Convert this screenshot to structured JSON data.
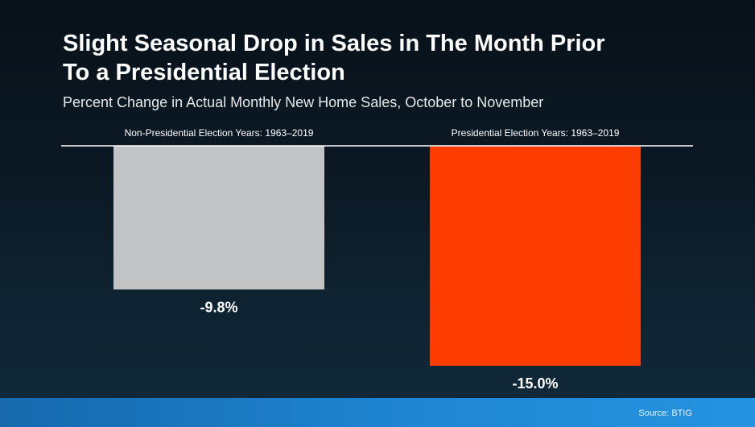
{
  "title_line1": "Slight Seasonal Drop in Sales in The Month Prior",
  "title_line2": "To a Presidential Election",
  "subtitle": "Percent Change in Actual Monthly New Home Sales, October to November",
  "source": "Source: BTIG",
  "colors": {
    "background": "#0c1a26",
    "bar_non_presidential": "#c1c3c4",
    "bar_presidential": "#fd3c00",
    "text": "#ffffff",
    "band": "#1f86d2"
  },
  "chart_data": {
    "type": "bar",
    "categories": [
      "Non-Presidential Election Years: 1963–2019",
      "Presidential Election Years: 1963–2019"
    ],
    "values": [
      -9.8,
      -15.0
    ],
    "value_labels": [
      "-9.8%",
      "-15.0%"
    ],
    "bar_colors": [
      "#c1c3c4",
      "#fd3c00"
    ],
    "unit": "%",
    "ylim": [
      -15.0,
      0
    ],
    "grid": false,
    "axis_baseline": "top",
    "legend": "none"
  }
}
